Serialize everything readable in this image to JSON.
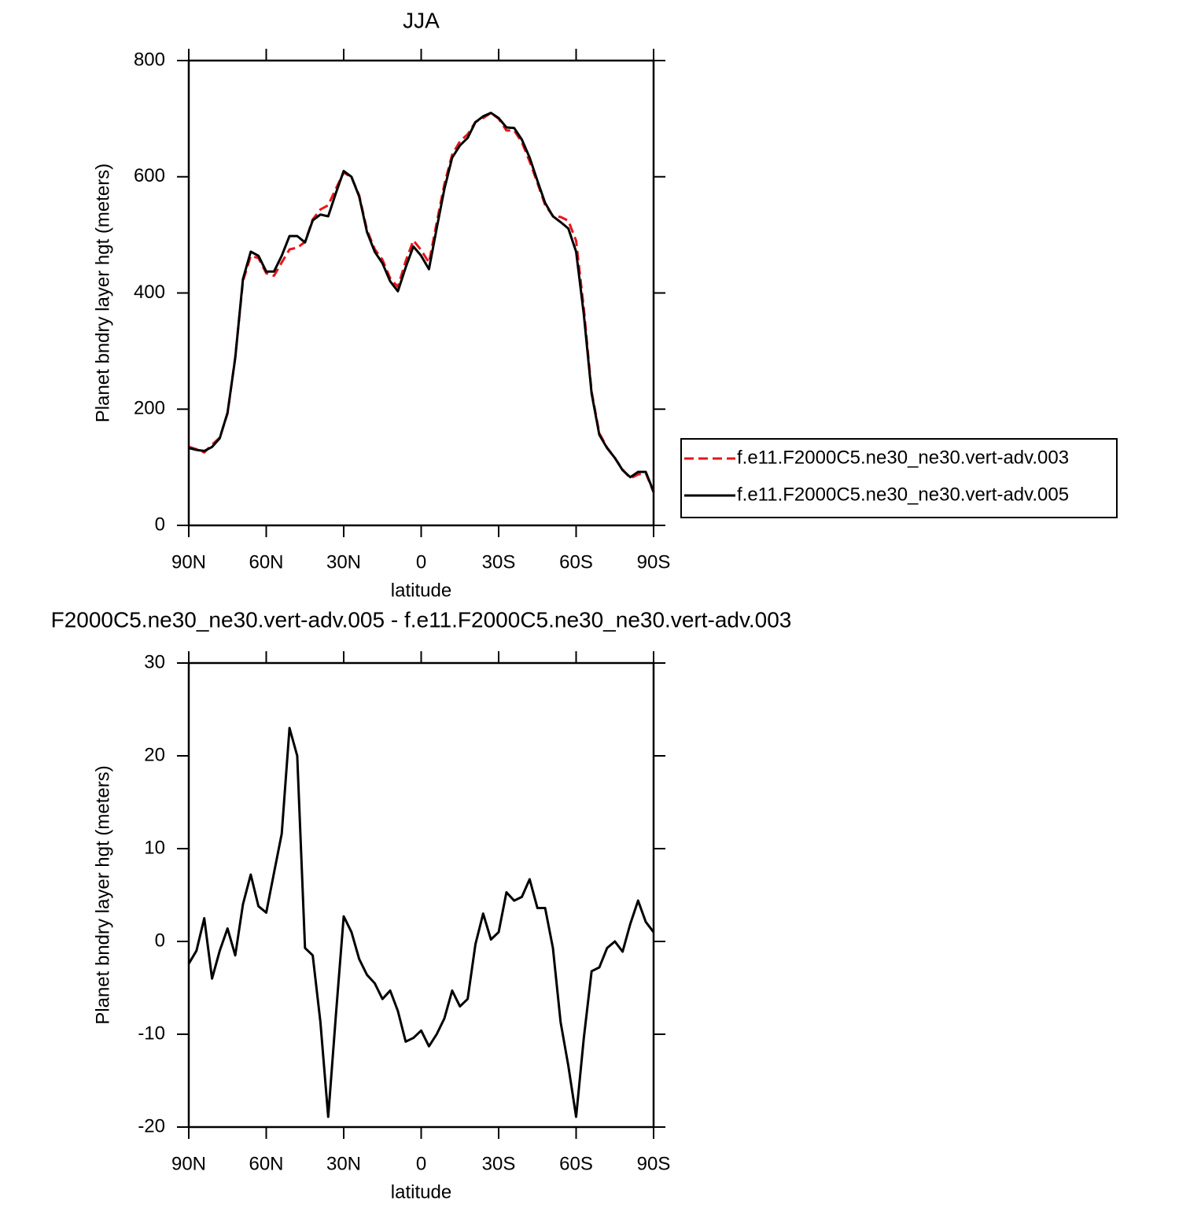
{
  "chart_data": [
    {
      "type": "line",
      "title": "JJA",
      "xlabel": "latitude",
      "ylabel": "Planet bndry layer hgt (meters)",
      "x": [
        90,
        87,
        84,
        81,
        78,
        75,
        72,
        69,
        66,
        63,
        60,
        57,
        54,
        51,
        48,
        45,
        42,
        39,
        36,
        33,
        30,
        27,
        24,
        21,
        18,
        15,
        12,
        9,
        6,
        3,
        0,
        -3,
        -6,
        -9,
        -12,
        -15,
        -18,
        -21,
        -24,
        -27,
        -30,
        -33,
        -36,
        -39,
        -42,
        -45,
        -48,
        -51,
        -54,
        -57,
        -60,
        -63,
        -66,
        -69,
        -72,
        -75,
        -78,
        -81,
        -84,
        -87,
        -90
      ],
      "xlim": [
        90,
        -90
      ],
      "xticks": [
        {
          "value": 90,
          "label": "90N"
        },
        {
          "value": 60,
          "label": "60N"
        },
        {
          "value": 30,
          "label": "30N"
        },
        0,
        {
          "value": -30,
          "label": "30S"
        },
        {
          "value": -60,
          "label": "60S"
        },
        {
          "value": -90,
          "label": "90S"
        }
      ],
      "ylim": [
        0,
        800
      ],
      "yticks": [
        0,
        200,
        400,
        600,
        800
      ],
      "legend": "right",
      "series": [
        {
          "name": "f.e11.F2000C5.ne30_ne30.vert-adv.003",
          "color": "#e8141c",
          "line_style": "dashed",
          "values": [
            135.4,
            131,
            125.5,
            139,
            151,
            192.6,
            289.5,
            420,
            463.8,
            460.2,
            433.9,
            429.6,
            452.4,
            475,
            478,
            487.7,
            526.5,
            543.7,
            550.9,
            579.9,
            607.3,
            599,
            567.9,
            508.6,
            475.5,
            457.2,
            425.3,
            410.5,
            454.8,
            490.4,
            473.6,
            452.3,
            521,
            587.3,
            638.3,
            661,
            673.2,
            694.3,
            701,
            709.8,
            700,
            679.7,
            679.6,
            659.2,
            626.3,
            589.4,
            551.4,
            532.7,
            530.7,
            524.4,
            489.9,
            373.4,
            230.2,
            158.8,
            133.7,
            116,
            96.1,
            81.1,
            87.6,
            89.9,
            57
          ]
        },
        {
          "name": "f.e11.F2000C5.ne30_ne30.vert-adv.005",
          "color": "#000000",
          "line_style": "solid",
          "values": [
            133,
            130,
            128,
            135,
            150,
            194,
            288,
            424,
            471,
            464,
            437,
            437,
            464,
            498,
            498,
            487,
            525,
            535,
            532,
            572,
            610,
            600,
            566,
            505,
            471,
            451,
            420,
            403,
            444,
            480,
            464,
            441,
            511,
            579,
            633,
            654,
            667,
            694,
            704,
            710,
            701,
            685,
            684,
            664,
            633,
            593,
            555,
            532,
            522,
            511,
            471,
            363,
            227,
            156,
            133,
            116,
            95,
            83,
            92,
            92,
            58
          ]
        }
      ]
    },
    {
      "type": "line",
      "title": "F2000C5.ne30_ne30.vert-adv.005 - f.e11.F2000C5.ne30_ne30.vert-adv.003",
      "xlabel": "latitude",
      "ylabel": "Planet bndry layer hgt (meters)",
      "x": [
        90,
        87,
        84,
        81,
        78,
        75,
        72,
        69,
        66,
        63,
        60,
        57,
        54,
        51,
        48,
        45,
        42,
        39,
        36,
        33,
        30,
        27,
        24,
        21,
        18,
        15,
        12,
        9,
        6,
        3,
        0,
        -3,
        -6,
        -9,
        -12,
        -15,
        -18,
        -21,
        -24,
        -27,
        -30,
        -33,
        -36,
        -39,
        -42,
        -45,
        -48,
        -51,
        -54,
        -57,
        -60,
        -63,
        -66,
        -69,
        -72,
        -75,
        -78,
        -81,
        -84,
        -87,
        -90
      ],
      "xlim": [
        90,
        -90
      ],
      "xticks": [
        {
          "value": 90,
          "label": "90N"
        },
        {
          "value": 60,
          "label": "60N"
        },
        {
          "value": 30,
          "label": "30N"
        },
        0,
        {
          "value": -30,
          "label": "30S"
        },
        {
          "value": -60,
          "label": "60S"
        },
        {
          "value": -90,
          "label": "90S"
        }
      ],
      "ylim": [
        -20,
        30
      ],
      "yticks": [
        -20,
        -10,
        0,
        10,
        20,
        30
      ],
      "series": [
        {
          "color": "#000000",
          "line_style": "solid",
          "values": [
            -2.4,
            -1,
            2.5,
            -4,
            -1,
            1.4,
            -1.5,
            4,
            7.2,
            3.8,
            3.1,
            7.4,
            11.6,
            23,
            20,
            -0.7,
            -1.5,
            -8.7,
            -18.9,
            -7.9,
            2.7,
            1,
            -1.9,
            -3.6,
            -4.5,
            -6.2,
            -5.3,
            -7.5,
            -10.8,
            -10.4,
            -9.6,
            -11.3,
            -10,
            -8.3,
            -5.3,
            -7,
            -6.2,
            -0.3,
            3,
            0.2,
            1,
            5.3,
            4.4,
            4.8,
            6.7,
            3.6,
            3.6,
            -0.7,
            -8.7,
            -13.4,
            -18.9,
            -10.4,
            -3.2,
            -2.8,
            -0.7,
            0,
            -1.1,
            1.9,
            4.4,
            2.1,
            1
          ]
        }
      ]
    }
  ]
}
